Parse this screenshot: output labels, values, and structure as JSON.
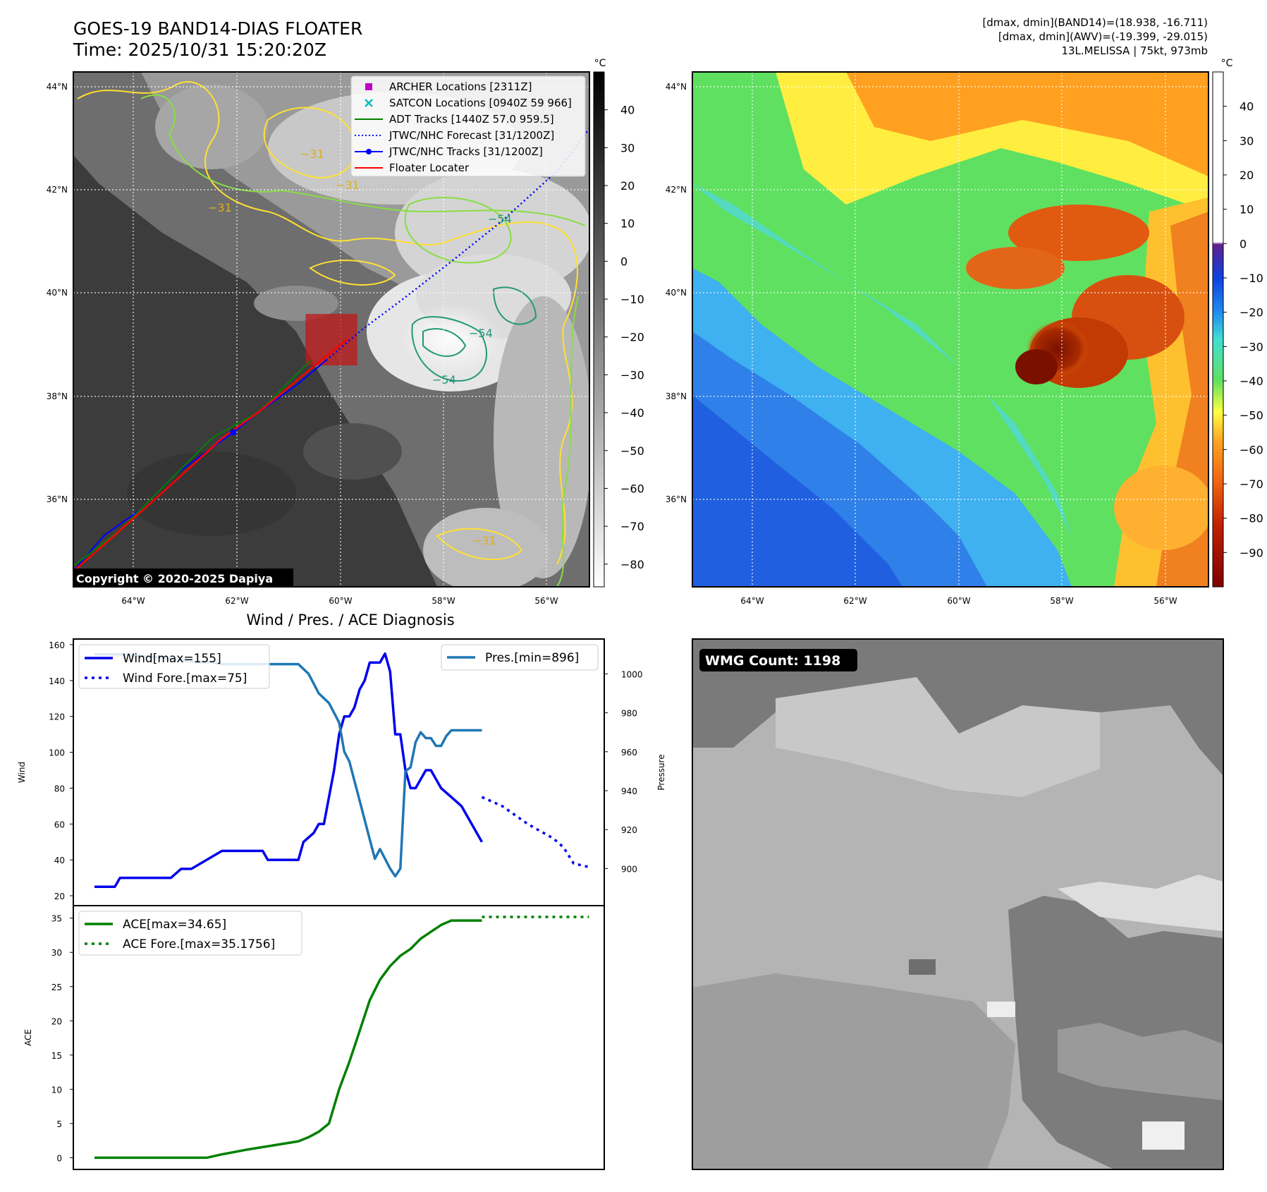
{
  "header": {
    "title_line1": "GOES-19 BAND14-DIAS FLOATER",
    "title_line2": "Time: 2025/10/31 15:20:20Z",
    "right_line1": "[dmax, dmin](BAND14)=(18.938, -16.711)",
    "right_line2": "[dmax, dmin](AWV)=(-19.399, -29.015)",
    "right_line3": "13L.MELISSA | 75kt, 973mb"
  },
  "map": {
    "lat_labels": [
      "44°N",
      "42°N",
      "40°N",
      "38°N",
      "36°N"
    ],
    "lon_labels": [
      "64°W",
      "62°W",
      "60°W",
      "58°W",
      "56°W"
    ],
    "copyright": "Copyright © 2020-2025 Dapiya",
    "contour_labels": [
      "−31",
      "−31",
      "−31",
      "−54",
      "−54",
      "−54",
      "−31"
    ],
    "legend": [
      {
        "label": "ARCHER Locations [2311Z]",
        "color": "#c000c0",
        "kind": "square"
      },
      {
        "label": "SATCON Locations [0940Z 59 966]",
        "color": "#00c0c0",
        "kind": "x"
      },
      {
        "label": "ADT Tracks [1440Z 57.0 959.5]",
        "color": "#008000",
        "kind": "line"
      },
      {
        "label": "JTWC/NHC Forecast [31/1200Z]",
        "color": "#0000ff",
        "kind": "dotted"
      },
      {
        "label": "JTWC/NHC Tracks [31/1200Z]",
        "color": "#0000ff",
        "kind": "marker-line"
      },
      {
        "label": "Floater Locater",
        "color": "#ff0000",
        "kind": "line"
      }
    ],
    "colors": {
      "contour_yellow": "#ffe033",
      "contour_lightgreen": "#88dd44",
      "contour_teal": "#229977",
      "track_red": "#ff0000",
      "track_blue": "#0000ff",
      "track_green": "#008000",
      "floater_box": "#c01818"
    },
    "tracks": {
      "lon_range": [
        -65.2,
        -55.2
      ],
      "lat_range": [
        34.5,
        44.5
      ],
      "jtwc": [
        [
          -65.2,
          34.8
        ],
        [
          -64.6,
          35.5
        ],
        [
          -63.9,
          36.0
        ],
        [
          -63.2,
          36.7
        ],
        [
          -62.1,
          37.5
        ],
        [
          -61.6,
          37.9
        ],
        [
          -60.9,
          38.4
        ],
        [
          -60.3,
          38.9
        ],
        [
          -59.6,
          39.5
        ],
        [
          -58.8,
          40.1
        ],
        [
          -57.9,
          40.8
        ],
        [
          -56.9,
          41.6
        ],
        [
          -55.8,
          42.6
        ],
        [
          -55.2,
          43.4
        ]
      ],
      "jtwc_forecast_from_index": 7,
      "adt": [
        [
          -65.2,
          34.9
        ],
        [
          -64.3,
          35.6
        ],
        [
          -63.6,
          36.3
        ],
        [
          -62.5,
          37.4
        ],
        [
          -61.6,
          37.9
        ],
        [
          -60.9,
          38.6
        ],
        [
          -60.6,
          38.9
        ]
      ],
      "floater": [
        [
          -65.2,
          34.8
        ],
        [
          -64.4,
          35.5
        ],
        [
          -63.4,
          36.4
        ],
        [
          -62.3,
          37.4
        ],
        [
          -61.6,
          37.9
        ],
        [
          -60.4,
          38.9
        ],
        [
          -59.9,
          39.3
        ]
      ],
      "floater_box": {
        "lon": [
          -60.7,
          -59.7
        ],
        "lat": [
          38.8,
          39.8
        ]
      }
    }
  },
  "colorbar_gray": {
    "unit": "°C",
    "range": [
      -86,
      50
    ],
    "ticks": [
      "40",
      "30",
      "20",
      "10",
      "0",
      "−10",
      "−20",
      "−30",
      "−40",
      "−50",
      "−60",
      "−70",
      "−80"
    ]
  },
  "colorbar_color": {
    "unit": "°C",
    "range": [
      -100,
      50
    ],
    "ticks": [
      "40",
      "30",
      "20",
      "10",
      "0",
      "−10",
      "−20",
      "−30",
      "−40",
      "−50",
      "−60",
      "−70",
      "−80",
      "−90"
    ]
  },
  "chart_data": [
    {
      "type": "line",
      "title": "Wind / Pres. / ACE Diagnosis",
      "ylabel": "Wind",
      "ylabel_right": "Pressure",
      "ylim": [
        20,
        160
      ],
      "ylim_right": [
        886,
        1015
      ],
      "xlim": [
        0,
        100
      ],
      "yticks": [
        "160",
        "140",
        "120",
        "100",
        "80",
        "60",
        "40",
        "20"
      ],
      "yticks_right": [
        "1000",
        "980",
        "960",
        "940",
        "920",
        "900"
      ],
      "series": [
        {
          "name": "Wind[max=155]",
          "color": "#0000ee",
          "style": "solid",
          "x": [
            0,
            4,
            5,
            15,
            17,
            19,
            22,
            25,
            26,
            33,
            34,
            35,
            40,
            41,
            43,
            44,
            45,
            46,
            47,
            48,
            49,
            50,
            51,
            52,
            53,
            54,
            56,
            57,
            58,
            59,
            60,
            61,
            62,
            63,
            64,
            65,
            66,
            67,
            68,
            70,
            72,
            73,
            74,
            76
          ],
          "y": [
            25,
            25,
            30,
            30,
            35,
            35,
            40,
            45,
            45,
            45,
            40,
            40,
            40,
            50,
            55,
            60,
            60,
            75,
            90,
            110,
            120,
            120,
            125,
            135,
            140,
            150,
            150,
            155,
            145,
            110,
            110,
            90,
            80,
            80,
            85,
            90,
            90,
            85,
            80,
            75,
            70,
            65,
            60,
            50
          ]
        },
        {
          "name": "Wind Fore.[max=75]",
          "color": "#0000ee",
          "style": "dotted",
          "x": [
            76,
            80,
            85,
            90,
            92,
            94,
            97
          ],
          "y": [
            75,
            70,
            60,
            52,
            47,
            38,
            36
          ]
        },
        {
          "name": "Pres.[min=896]",
          "color": "#1f77b4",
          "style": "solid",
          "x": [
            0,
            5,
            10,
            14,
            17,
            20,
            23,
            25,
            30,
            35,
            40,
            42,
            44,
            46,
            47,
            48,
            49,
            50,
            51,
            52,
            53,
            54,
            55,
            56,
            57,
            58,
            59,
            60,
            61,
            62,
            63,
            64,
            65,
            66,
            67,
            68,
            69,
            70,
            71,
            72,
            73,
            74,
            75,
            76
          ],
          "y": [
            1010,
            1010,
            1009,
            1008,
            1007,
            1006,
            1006,
            1005,
            1005,
            1005,
            1005,
            1000,
            990,
            985,
            980,
            975,
            960,
            955,
            945,
            935,
            925,
            915,
            905,
            910,
            905,
            900,
            896,
            900,
            950,
            952,
            965,
            970,
            967,
            967,
            963,
            963,
            968,
            971,
            971,
            971,
            971,
            971,
            971,
            971
          ]
        }
      ]
    },
    {
      "type": "line",
      "ylabel": "ACE",
      "ylim": [
        -1.5,
        36
      ],
      "xlim": [
        0,
        100
      ],
      "yticks": [
        "35",
        "30",
        "25",
        "20",
        "15",
        "10",
        "5",
        "0"
      ],
      "series": [
        {
          "name": "ACE[max=34.65]",
          "color": "#008000",
          "style": "solid",
          "x": [
            0,
            10,
            20,
            22,
            25,
            30,
            35,
            40,
            42,
            44,
            46,
            47,
            48,
            50,
            52,
            54,
            56,
            58,
            60,
            62,
            64,
            66,
            68,
            70,
            72,
            74,
            76
          ],
          "y": [
            0,
            0,
            0,
            0,
            0.5,
            1.2,
            1.8,
            2.4,
            3.0,
            3.8,
            5.0,
            7.5,
            10,
            14,
            18.5,
            23,
            26,
            28,
            29.5,
            30.5,
            32,
            33,
            34,
            34.65,
            34.65,
            34.65,
            34.65
          ]
        },
        {
          "name": "ACE Fore.[max=35.1756]",
          "color": "#008000",
          "style": "dotted",
          "x": [
            76,
            80,
            85,
            90,
            97
          ],
          "y": [
            35.1756,
            35.1756,
            35.1756,
            35.1756,
            35.1756
          ]
        }
      ]
    }
  ],
  "wmg": {
    "label": "WMG Count: 1198"
  }
}
